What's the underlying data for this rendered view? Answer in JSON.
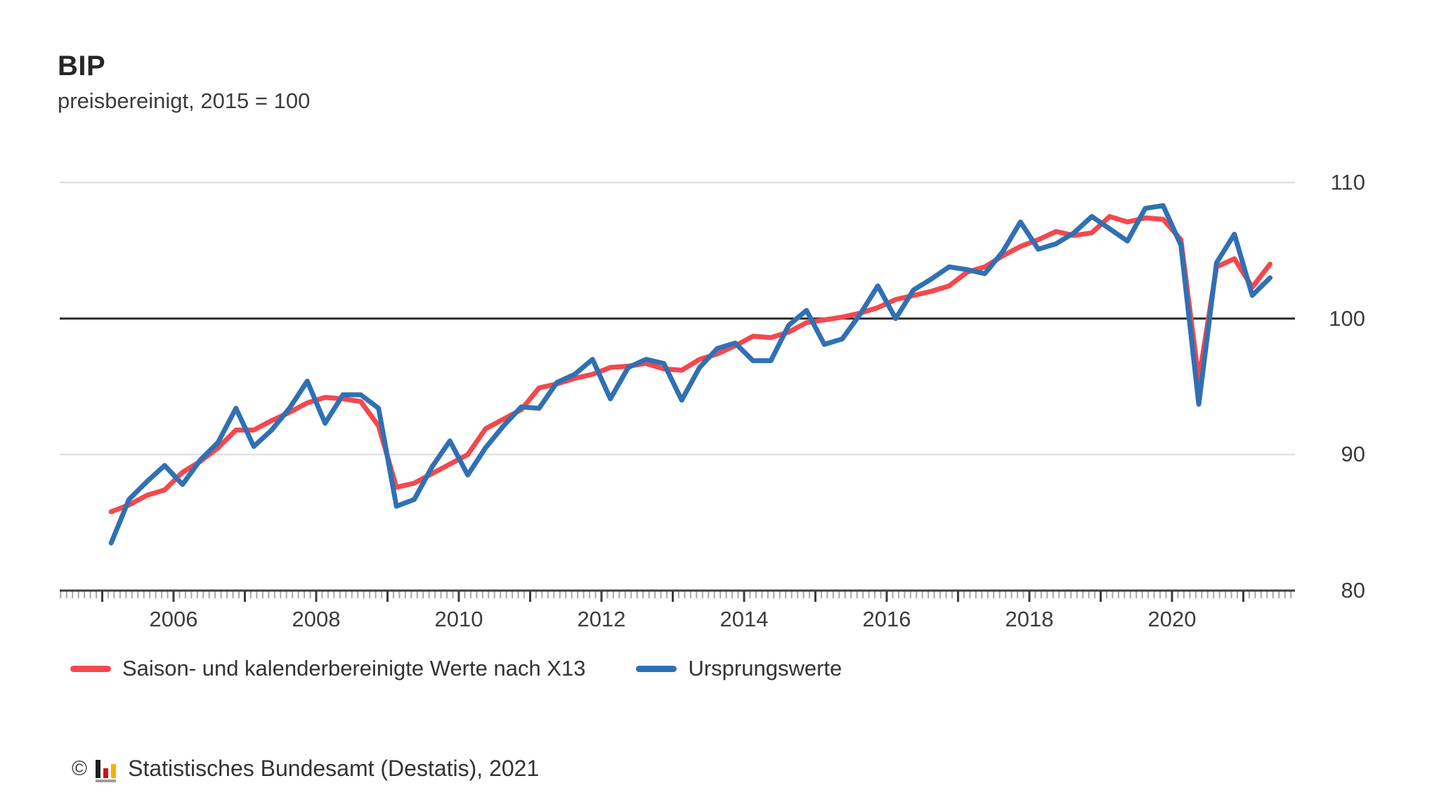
{
  "header": {
    "title": "BIP",
    "subtitle": "preisbereinigt, 2015 = 100"
  },
  "footer": {
    "copyright_symbol": "©",
    "source": "Statistisches Bundesamt (Destatis), 2021",
    "logo_icon": "destatis-bar-chart-logo",
    "logo_colors": {
      "bar1": "#1d1d1b",
      "bar2": "#d00f1f",
      "bar3": "#f0b400",
      "base": "#9d9d9c"
    }
  },
  "chart_data": {
    "type": "line",
    "title": "BIP",
    "subtitle": "preisbereinigt, 2015 = 100",
    "x": {
      "start": "2005 Q1",
      "end": "2021 Q2",
      "step": "quarter",
      "points": 66
    },
    "x_tick_labels": [
      "2006",
      "2008",
      "2010",
      "2012",
      "2014",
      "2016",
      "2018",
      "2020"
    ],
    "y_ticks": [
      80,
      90,
      100,
      110
    ],
    "ylim": [
      80,
      111.5
    ],
    "baseline": 100,
    "grid": "horizontal",
    "legend_position": "bottom",
    "grid_color": "#dcdcdc",
    "axis_color": "#3c3c3c",
    "baseline_color": "#2e2e2e",
    "minor_tick_color": "#a8a8a8",
    "series": [
      {
        "name": "Saison- und kalenderbereinigte Werte nach X13",
        "color": "#f3484e",
        "values": [
          85.8,
          86.3,
          87.0,
          87.4,
          88.7,
          89.5,
          90.5,
          91.8,
          91.8,
          92.5,
          93.1,
          93.8,
          94.2,
          94.1,
          93.9,
          92.1,
          87.6,
          87.9,
          88.6,
          89.3,
          90.0,
          91.9,
          92.6,
          93.3,
          94.9,
          95.2,
          95.6,
          95.9,
          96.4,
          96.5,
          96.7,
          96.3,
          96.2,
          97.0,
          97.4,
          98.0,
          98.7,
          98.6,
          99.0,
          99.7,
          99.9,
          100.1,
          100.4,
          100.8,
          101.4,
          101.7,
          102.0,
          102.4,
          103.4,
          103.8,
          104.6,
          105.3,
          105.8,
          106.4,
          106.1,
          106.3,
          107.5,
          107.1,
          107.4,
          107.3,
          105.8,
          95.5,
          103.8,
          104.4,
          102.3,
          104.0
        ]
      },
      {
        "name": "Ursprungswerte",
        "color": "#3070b3",
        "values": [
          83.5,
          86.7,
          88.0,
          89.2,
          87.8,
          89.6,
          90.9,
          93.4,
          90.6,
          91.8,
          93.4,
          95.4,
          92.3,
          94.4,
          94.4,
          93.4,
          86.2,
          86.7,
          89.1,
          91.0,
          88.5,
          90.5,
          92.1,
          93.5,
          93.4,
          95.3,
          95.9,
          97.0,
          94.1,
          96.4,
          97.0,
          96.7,
          94.0,
          96.4,
          97.8,
          98.2,
          96.9,
          96.9,
          99.5,
          100.6,
          98.1,
          98.5,
          100.3,
          102.4,
          100.0,
          102.1,
          102.9,
          103.8,
          103.6,
          103.3,
          104.9,
          107.1,
          105.1,
          105.5,
          106.3,
          107.5,
          106.6,
          105.7,
          108.1,
          108.3,
          105.4,
          93.7,
          104.1,
          106.2,
          101.7,
          103.0
        ]
      }
    ]
  }
}
